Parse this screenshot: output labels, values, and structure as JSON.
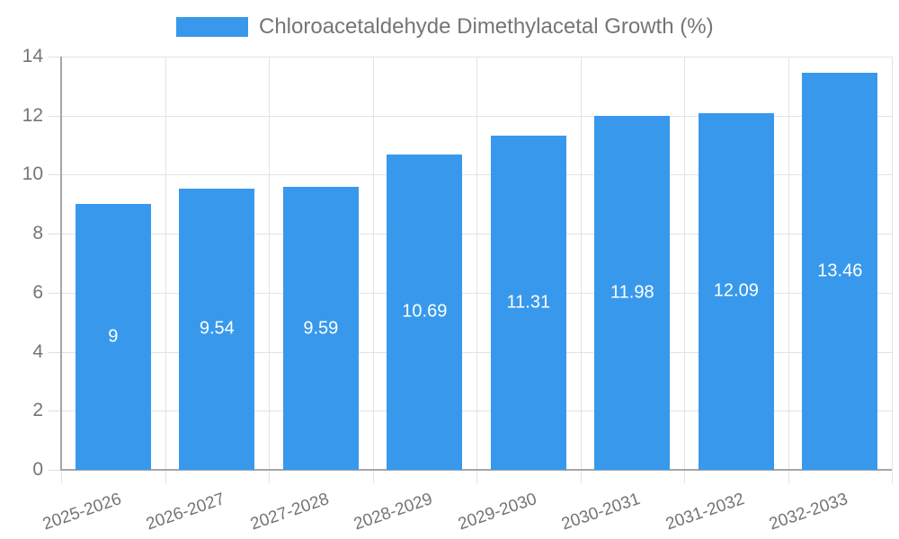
{
  "colors": {
    "bar": "#3899EC",
    "grid": "#E3E3E3",
    "tick": "#DFDFDF",
    "axis": "#A6A6A6",
    "tick_text": "#757575",
    "bar_label_text": "#FFFFFF"
  },
  "chart_data": {
    "type": "bar",
    "title": "Chloroacetaldehyde Dimethylacetal Growth (%)",
    "categories": [
      "2025-2026",
      "2026-2027",
      "2027-2028",
      "2028-2029",
      "2029-2030",
      "2030-2031",
      "2031-2032",
      "2032-2033"
    ],
    "values": [
      9,
      9.54,
      9.59,
      10.69,
      11.31,
      11.98,
      12.09,
      13.46
    ],
    "data_labels": [
      "9",
      "9.54",
      "9.59",
      "10.69",
      "11.31",
      "11.98",
      "12.09",
      "13.46"
    ],
    "xlabel": "",
    "ylabel": "",
    "ylim": [
      0,
      14
    ],
    "yticks": [
      0,
      2,
      4,
      6,
      8,
      10,
      12,
      14
    ],
    "grid": true,
    "legend_position": "top-center",
    "bar_label_position": "center"
  }
}
